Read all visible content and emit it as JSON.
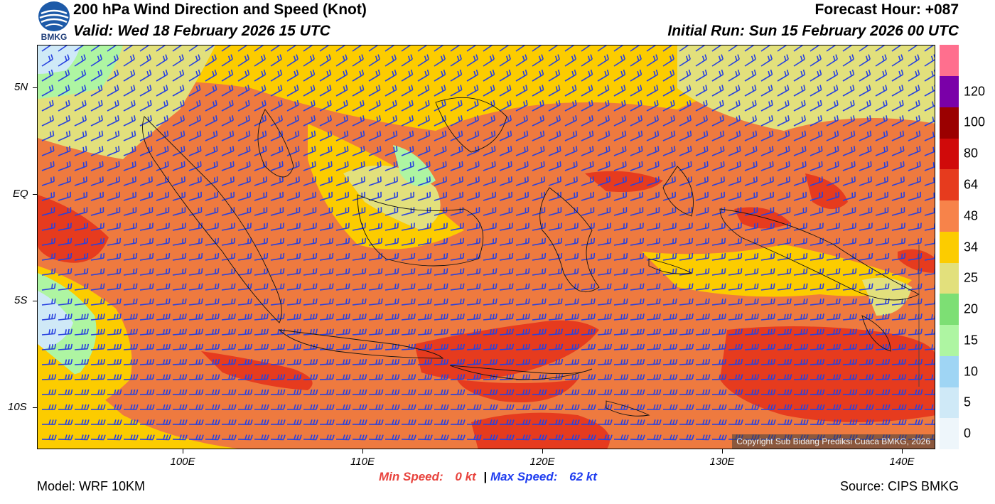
{
  "header": {
    "title": "200 hPa Wind Direction and Speed (Knot)",
    "valid": "Valid: Wed 18 February 2026 15 UTC",
    "forecast_hour": "Forecast Hour: +087",
    "initial_run": "Initial Run: Sun 15 February 2026 00 UTC",
    "logo_text": "BMKG"
  },
  "axes": {
    "y_labels": [
      "5N",
      "EQ",
      "5S",
      "10S"
    ],
    "x_labels": [
      "100E",
      "110E",
      "120E",
      "130E",
      "140E"
    ]
  },
  "colorbar": {
    "labels": [
      "0",
      "5",
      "10",
      "15",
      "20",
      "25",
      "34",
      "48",
      "64",
      "80",
      "100",
      "120"
    ],
    "colors": [
      "#eef6fb",
      "#cfe9f7",
      "#9fd5f4",
      "#aef5a2",
      "#7ddf74",
      "#e2e07c",
      "#fccc00",
      "#f7834a",
      "#e63b1e",
      "#d00a0a",
      "#9b0000",
      "#7a00a8",
      "#ff6f8e"
    ]
  },
  "map": {
    "copyright": "Copyright Sub Bidang Prediksi Cuaca BMKG, 2026",
    "barb_color": "#2741e0"
  },
  "footer": {
    "model": "Model: WRF 10KM",
    "source": "Source: CIPS BMKG",
    "min_label": "Min Speed:",
    "min_value": "0 kt",
    "separator": "|",
    "max_label": "Max Speed:",
    "max_value": "62 kt",
    "min_color": "#e8433d",
    "max_color": "#1f3df0"
  }
}
